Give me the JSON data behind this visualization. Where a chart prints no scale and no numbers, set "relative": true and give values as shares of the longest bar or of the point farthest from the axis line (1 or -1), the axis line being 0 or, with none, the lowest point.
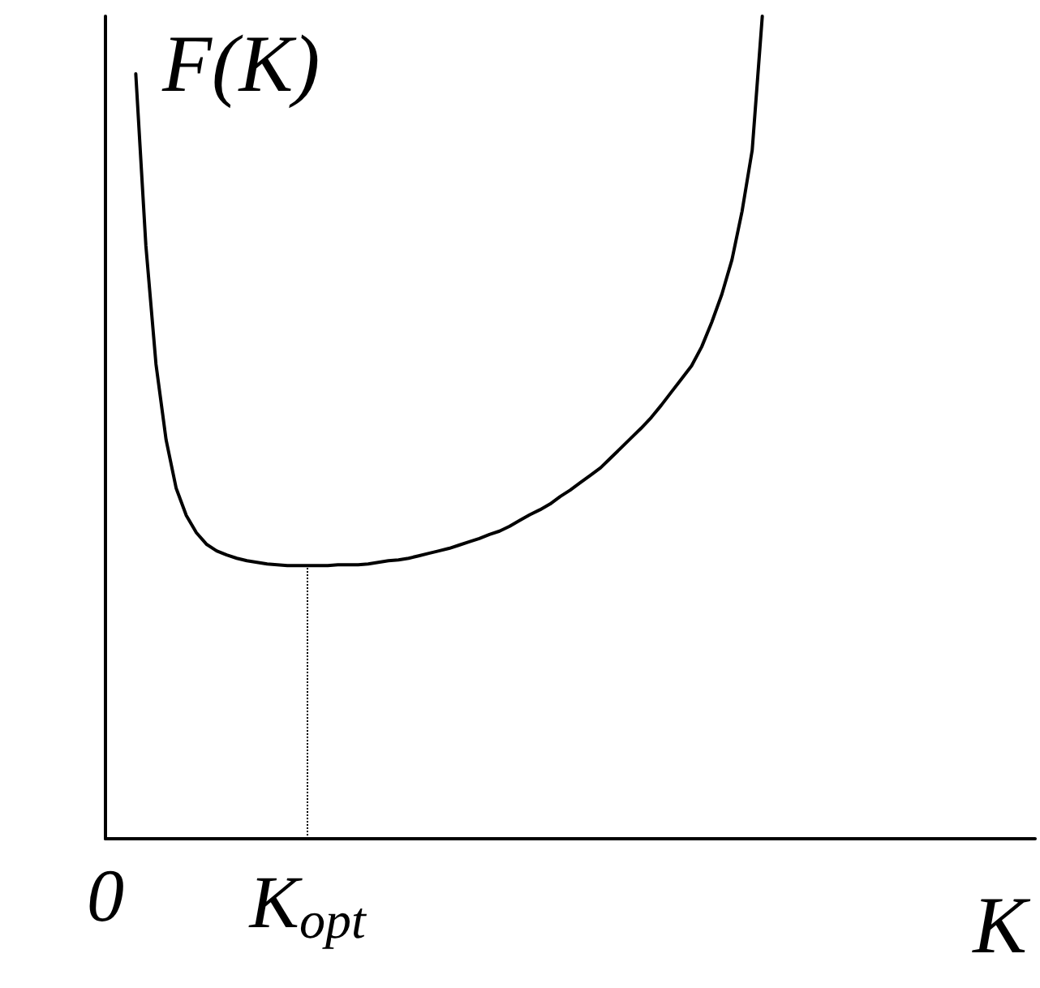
{
  "chart_data": {
    "type": "line",
    "relative": true,
    "ylabel": "F(K)",
    "xlabel": "K",
    "categories": [
      "0",
      null,
      null,
      null,
      null,
      null,
      null,
      null,
      null,
      null,
      null,
      null,
      null,
      null,
      null,
      null,
      null,
      null,
      null,
      null,
      "K$_{opt}$",
      null,
      null,
      null,
      null,
      null,
      null,
      null,
      null,
      null,
      null,
      null,
      null,
      null,
      null,
      null,
      null,
      null,
      null,
      null,
      null,
      null,
      null,
      null,
      null,
      null,
      null,
      null,
      null,
      null,
      null,
      null,
      null,
      null,
      null,
      null,
      null,
      null,
      null,
      null,
      null,
      null,
      null,
      null,
      null,
      null,
      null,
      null,
      null,
      null,
      null,
      null,
      null,
      null,
      null,
      null,
      null,
      null,
      null,
      null,
      null,
      null,
      null,
      null,
      null,
      null,
      null,
      null,
      null,
      null,
      null,
      null,
      null
    ],
    "series": [
      {
        "color": "#000000",
        "values": [
          null,
          null,
          null,
          0.93,
          0.721,
          0.577,
          0.485,
          0.426,
          0.393,
          0.372,
          0.358,
          0.35,
          0.345,
          0.341,
          0.338,
          0.336,
          0.334,
          0.333,
          0.332,
          0.332,
          0.332,
          0.332,
          0.332,
          0.333,
          0.333,
          0.333,
          0.334,
          0.336,
          0.338,
          0.339,
          0.341,
          0.344,
          0.347,
          0.35,
          0.353,
          0.357,
          0.361,
          0.365,
          0.37,
          0.374,
          0.38,
          0.387,
          0.394,
          0.4,
          0.407,
          0.416,
          0.424,
          0.433,
          0.442,
          0.451,
          0.463,
          0.475,
          0.487,
          0.499,
          0.512,
          0.527,
          0.543,
          0.559,
          0.575,
          0.598,
          0.628,
          0.662,
          0.704,
          0.763,
          0.837,
          1.0,
          null,
          null,
          null,
          null,
          null,
          null,
          null,
          null,
          null,
          null,
          null,
          null,
          null,
          null,
          null,
          null,
          null,
          null,
          null,
          null,
          null,
          null,
          null,
          null,
          null,
          null,
          null
        ]
      }
    ],
    "ref_lines": [
      {
        "axis": "x",
        "value": "K$_{opt}$",
        "line_style": "dotted",
        "color": "#000000"
      }
    ],
    "grid": false,
    "marker": "none",
    "line_style": "solid"
  }
}
